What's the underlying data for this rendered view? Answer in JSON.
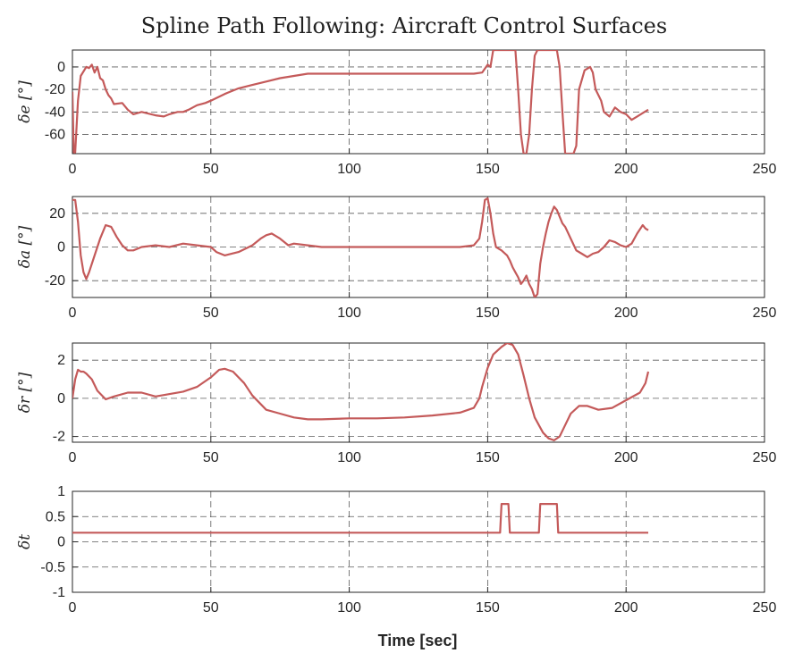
{
  "title": "Spline Path Following: Aircraft Control Surfaces",
  "xlabel": "Time [sec]",
  "series_color": "#c45a5a",
  "chart_data": [
    {
      "type": "line",
      "ylabel": "δe [°]",
      "xlim": [
        0,
        250
      ],
      "ylim": [
        -77,
        15
      ],
      "xticks": [
        0,
        50,
        100,
        150,
        200,
        250
      ],
      "yticks": [
        0,
        -20,
        -40,
        -60
      ],
      "grid": true,
      "x": [
        0,
        0.5,
        1,
        2,
        3,
        5,
        6,
        7,
        8,
        9,
        10,
        11,
        12,
        13,
        14,
        15,
        18,
        20,
        22,
        25,
        30,
        33,
        35,
        38,
        40,
        42,
        45,
        48,
        50,
        55,
        60,
        65,
        70,
        75,
        80,
        85,
        90,
        100,
        110,
        120,
        130,
        140,
        145,
        148,
        150,
        151,
        152,
        155,
        158,
        160,
        161,
        162,
        163,
        164,
        165,
        166,
        167,
        168,
        170,
        172,
        175,
        176,
        177,
        178,
        179,
        180,
        181,
        182,
        183,
        185,
        187,
        188,
        189,
        190,
        191,
        192,
        194,
        196,
        198,
        200,
        202,
        204,
        206,
        208
      ],
      "y": [
        -22,
        -76,
        -76,
        -30,
        -8,
        0,
        -1,
        2,
        -5,
        0,
        -10,
        -12,
        -20,
        -25,
        -28,
        -33,
        -32,
        -38,
        -42,
        -40,
        -43,
        -44,
        -42,
        -40,
        -40,
        -38,
        -34,
        -32,
        -30,
        -24,
        -19,
        -16,
        -13,
        -10,
        -8,
        -6,
        -6,
        -6,
        -6,
        -6,
        -6,
        -6,
        -6,
        -5,
        2,
        0,
        15,
        15,
        15,
        15,
        -20,
        -60,
        -77,
        -77,
        -60,
        -20,
        10,
        15,
        15,
        15,
        15,
        0,
        -40,
        -77,
        -77,
        -77,
        -77,
        -70,
        -20,
        -3,
        0,
        -5,
        -20,
        -25,
        -30,
        -40,
        -44,
        -36,
        -40,
        -42,
        -47,
        -44,
        -41,
        -38
      ]
    },
    {
      "type": "line",
      "ylabel": "δa [°]",
      "xlim": [
        0,
        250
      ],
      "ylim": [
        -30,
        30
      ],
      "xticks": [
        0,
        50,
        100,
        150,
        200,
        250
      ],
      "yticks": [
        20,
        0,
        -20
      ],
      "grid": true,
      "x": [
        0,
        1,
        2,
        3,
        4,
        5,
        6,
        8,
        10,
        12,
        14,
        16,
        18,
        20,
        22,
        25,
        30,
        35,
        40,
        45,
        50,
        52,
        55,
        60,
        65,
        68,
        70,
        72,
        75,
        78,
        80,
        85,
        90,
        100,
        110,
        120,
        130,
        140,
        145,
        147,
        148,
        149,
        150,
        151,
        152,
        153,
        155,
        157,
        158,
        159,
        160,
        161,
        162,
        163,
        164,
        165,
        166,
        167,
        168,
        169,
        170,
        171,
        172,
        173,
        174,
        175,
        176,
        177,
        178,
        180,
        182,
        184,
        186,
        188,
        190,
        192,
        194,
        196,
        198,
        200,
        202,
        204,
        206,
        207,
        208
      ],
      "y": [
        28,
        28,
        15,
        -5,
        -15,
        -19,
        -15,
        -5,
        5,
        13,
        12,
        6,
        1,
        -2,
        -2,
        0,
        1,
        0,
        2,
        1,
        0,
        -3,
        -5,
        -3,
        1,
        5,
        7,
        8,
        5,
        1,
        2,
        1,
        0,
        0,
        0,
        0,
        0,
        0,
        1,
        5,
        15,
        28,
        29,
        20,
        8,
        0,
        -2,
        -5,
        -8,
        -12,
        -15,
        -18,
        -22,
        -20,
        -17,
        -22,
        -25,
        -30,
        -28,
        -10,
        0,
        8,
        15,
        20,
        24,
        22,
        18,
        14,
        12,
        5,
        -2,
        -4,
        -6,
        -4,
        -3,
        0,
        4,
        3,
        1,
        0,
        2,
        8,
        13,
        11,
        10
      ]
    },
    {
      "type": "line",
      "ylabel": "δr [°]",
      "xlim": [
        0,
        250
      ],
      "ylim": [
        -2.3,
        2.9
      ],
      "xticks": [
        0,
        50,
        100,
        150,
        200,
        250
      ],
      "yticks": [
        2,
        0,
        -2
      ],
      "grid": true,
      "x": [
        0,
        1,
        2,
        3,
        4,
        5,
        7,
        9,
        12,
        15,
        20,
        25,
        30,
        40,
        45,
        50,
        53,
        55,
        58,
        62,
        65,
        70,
        75,
        80,
        85,
        90,
        100,
        110,
        120,
        130,
        140,
        145,
        147,
        148,
        150,
        152,
        155,
        157,
        159,
        161,
        163,
        165,
        167,
        170,
        172,
        174,
        176,
        178,
        180,
        183,
        186,
        190,
        195,
        200,
        205,
        207,
        208
      ],
      "y": [
        0,
        1,
        1.5,
        1.4,
        1.4,
        1.3,
        1,
        0.4,
        -0.05,
        0.1,
        0.3,
        0.3,
        0.1,
        0.35,
        0.6,
        1.1,
        1.5,
        1.55,
        1.4,
        0.8,
        0.15,
        -0.6,
        -0.8,
        -1.0,
        -1.1,
        -1.1,
        -1.05,
        -1.05,
        -1.0,
        -0.9,
        -0.75,
        -0.5,
        0,
        0.6,
        1.6,
        2.3,
        2.7,
        2.9,
        2.8,
        2.3,
        1.2,
        0,
        -1.0,
        -1.8,
        -2.1,
        -2.2,
        -2.0,
        -1.4,
        -0.8,
        -0.4,
        -0.4,
        -0.6,
        -0.5,
        -0.1,
        0.3,
        0.8,
        1.4
      ]
    },
    {
      "type": "line",
      "ylabel": "δt",
      "xlim": [
        0,
        250
      ],
      "ylim": [
        -1,
        1
      ],
      "xticks": [
        0,
        50,
        100,
        150,
        200,
        250
      ],
      "yticks": [
        1,
        0.5,
        0,
        -0.5,
        -1
      ],
      "grid": true,
      "x": [
        0,
        154.5,
        155,
        157.5,
        158,
        168.5,
        169,
        175,
        175.5,
        208
      ],
      "y": [
        0.18,
        0.18,
        0.75,
        0.75,
        0.18,
        0.18,
        0.75,
        0.75,
        0.18,
        0.18
      ]
    }
  ]
}
